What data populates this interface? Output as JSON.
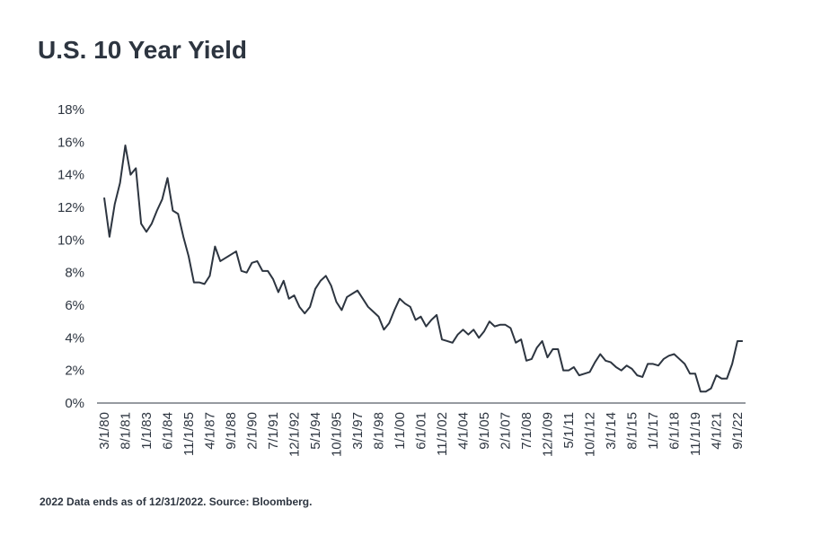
{
  "chart_data": {
    "type": "line",
    "title": "U.S. 10 Year Yield",
    "footnote": "2022 Data ends as of 12/31/2022. Source: Bloomberg.",
    "categories": [
      "3/1/80",
      null,
      null,
      null,
      "8/1/81",
      null,
      null,
      null,
      "1/1/83",
      null,
      null,
      null,
      "6/1/84",
      null,
      null,
      null,
      "11/1/85",
      null,
      null,
      null,
      "4/1/87",
      null,
      null,
      null,
      "9/1/88",
      null,
      null,
      null,
      "2/1/90",
      null,
      null,
      null,
      "7/1/91",
      null,
      null,
      null,
      "12/1/92",
      null,
      null,
      null,
      "5/1/94",
      null,
      null,
      null,
      "10/1/95",
      null,
      null,
      null,
      "3/1/97",
      null,
      null,
      null,
      "8/1/98",
      null,
      null,
      null,
      "1/1/00",
      null,
      null,
      null,
      "6/1/01",
      null,
      null,
      null,
      "11/1/02",
      null,
      null,
      null,
      "4/1/04",
      null,
      null,
      null,
      "9/1/05",
      null,
      null,
      null,
      "2/1/07",
      null,
      null,
      null,
      "7/1/08",
      null,
      null,
      null,
      "12/1/09",
      null,
      null,
      null,
      "5/1/11",
      null,
      null,
      null,
      "10/1/12",
      null,
      null,
      null,
      "3/1/14",
      null,
      null,
      null,
      "8/1/15",
      null,
      null,
      null,
      "1/1/17",
      null,
      null,
      null,
      "6/1/18",
      null,
      null,
      null,
      "11/1/19",
      null,
      null,
      null,
      "4/1/21",
      null,
      null,
      null,
      "9/1/22",
      null
    ],
    "series": [
      {
        "name": "U.S. 10 Year Yield",
        "color": "#2d3540",
        "values": [
          12.6,
          10.2,
          12.2,
          13.5,
          15.8,
          14.0,
          14.4,
          11.0,
          10.5,
          11.0,
          11.8,
          12.5,
          13.8,
          11.8,
          11.6,
          10.2,
          9.0,
          7.4,
          7.4,
          7.3,
          7.8,
          9.6,
          8.7,
          8.9,
          9.1,
          9.3,
          8.1,
          8.0,
          8.6,
          8.7,
          8.1,
          8.1,
          7.6,
          6.8,
          7.5,
          6.4,
          6.6,
          5.9,
          5.5,
          5.9,
          7.0,
          7.5,
          7.8,
          7.2,
          6.2,
          5.7,
          6.5,
          6.7,
          6.9,
          6.4,
          5.9,
          5.6,
          5.3,
          4.5,
          4.9,
          5.7,
          6.4,
          6.1,
          5.9,
          5.1,
          5.3,
          4.7,
          5.1,
          5.4,
          3.9,
          3.8,
          3.7,
          4.2,
          4.5,
          4.2,
          4.5,
          4.0,
          4.4,
          5.0,
          4.7,
          4.8,
          4.8,
          4.6,
          3.7,
          3.9,
          2.6,
          2.7,
          3.4,
          3.8,
          2.8,
          3.3,
          3.3,
          2.0,
          2.0,
          2.2,
          1.7,
          1.8,
          1.9,
          2.5,
          3.0,
          2.6,
          2.5,
          2.2,
          2.0,
          2.3,
          2.1,
          1.7,
          1.6,
          2.4,
          2.4,
          2.3,
          2.7,
          2.9,
          3.0,
          2.7,
          2.4,
          1.8,
          1.8,
          0.7,
          0.7,
          0.9,
          1.7,
          1.5,
          1.5,
          2.4,
          3.8,
          3.8
        ]
      }
    ],
    "ylim": [
      0,
      18
    ],
    "yticks": [
      {
        "value": 0,
        "label": "0%"
      },
      {
        "value": 2,
        "label": "2%"
      },
      {
        "value": 4,
        "label": "4%"
      },
      {
        "value": 6,
        "label": "6%"
      },
      {
        "value": 8,
        "label": "8%"
      },
      {
        "value": 10,
        "label": "10%"
      },
      {
        "value": 12,
        "label": "12%"
      },
      {
        "value": 14,
        "label": "14%"
      },
      {
        "value": 16,
        "label": "16%"
      },
      {
        "value": 18,
        "label": "18%"
      }
    ],
    "grid": false
  }
}
